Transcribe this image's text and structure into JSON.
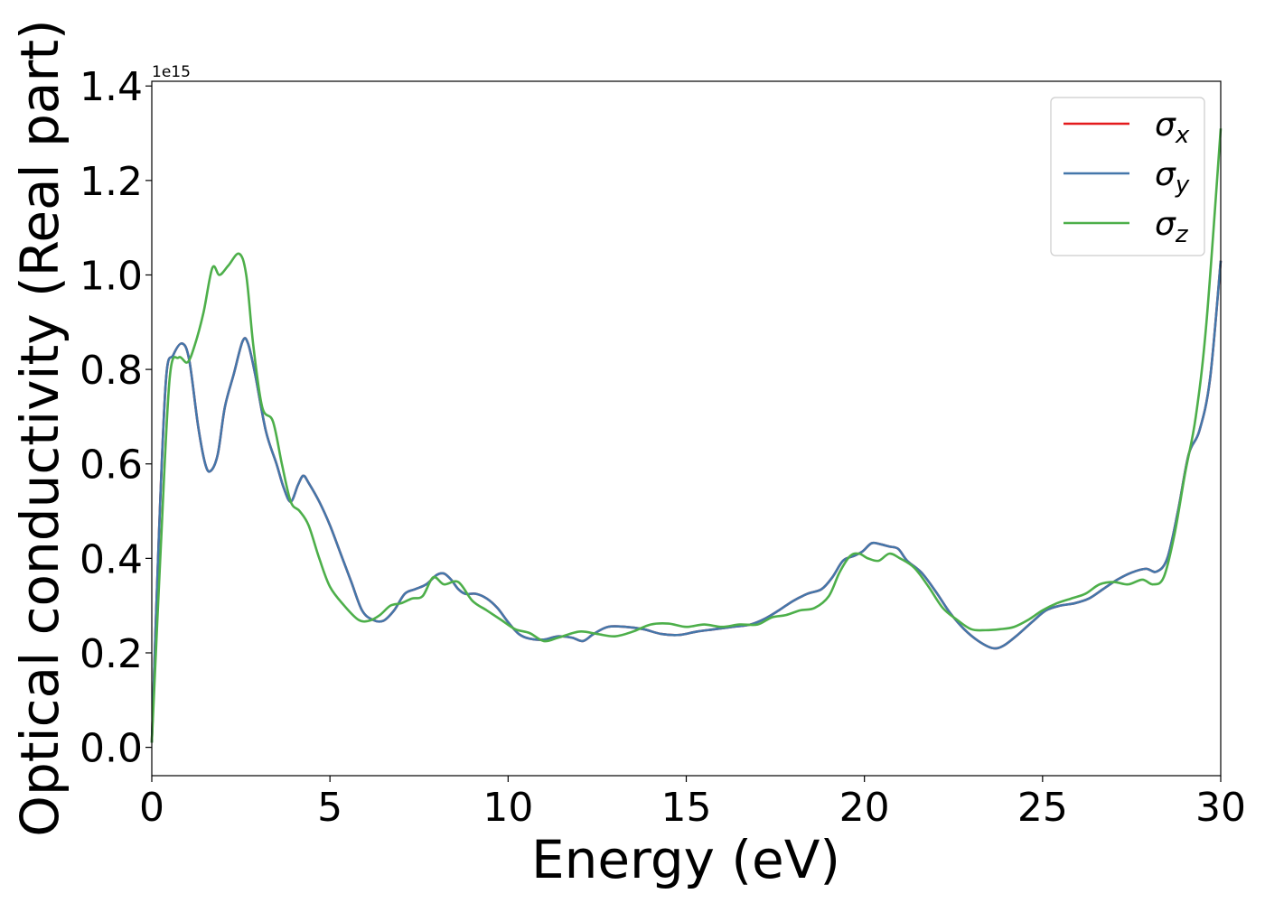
{
  "chart_data": {
    "type": "line",
    "title": "",
    "xlabel": "Energy (eV)",
    "ylabel": "Optical conductivity (Real part)",
    "y_multiplier_label": "1e15",
    "xlim": [
      0,
      30
    ],
    "ylim": [
      -0.06,
      1.41
    ],
    "xticks": [
      0,
      5,
      10,
      15,
      20,
      25,
      30
    ],
    "xtick_labels": [
      "0",
      "5",
      "10",
      "15",
      "20",
      "25",
      "30"
    ],
    "yticks": [
      0.0,
      0.2,
      0.4,
      0.6,
      0.8,
      1.0,
      1.2,
      1.4
    ],
    "ytick_labels": [
      "0.0",
      "0.2",
      "0.4",
      "0.6",
      "0.8",
      "1.0",
      "1.2",
      "1.4"
    ],
    "grid": false,
    "legend_position": "top-right",
    "series": [
      {
        "name": "σx",
        "name_base": "σ",
        "name_sub": "x",
        "color": "#e41a1c",
        "points": [
          [
            0,
            0.01
          ],
          [
            0.2,
            0.45
          ],
          [
            0.4,
            0.78
          ],
          [
            0.6,
            0.83
          ],
          [
            0.85,
            0.855
          ],
          [
            1.05,
            0.82
          ],
          [
            1.3,
            0.68
          ],
          [
            1.5,
            0.6
          ],
          [
            1.65,
            0.585
          ],
          [
            1.85,
            0.62
          ],
          [
            2.05,
            0.72
          ],
          [
            2.3,
            0.79
          ],
          [
            2.55,
            0.86
          ],
          [
            2.7,
            0.855
          ],
          [
            2.9,
            0.79
          ],
          [
            3.2,
            0.67
          ],
          [
            3.5,
            0.6
          ],
          [
            3.7,
            0.55
          ],
          [
            3.9,
            0.52
          ],
          [
            4.1,
            0.555
          ],
          [
            4.25,
            0.575
          ],
          [
            4.4,
            0.56
          ],
          [
            4.7,
            0.52
          ],
          [
            5.0,
            0.47
          ],
          [
            5.3,
            0.41
          ],
          [
            5.6,
            0.35
          ],
          [
            5.9,
            0.29
          ],
          [
            6.2,
            0.27
          ],
          [
            6.5,
            0.268
          ],
          [
            6.8,
            0.29
          ],
          [
            7.1,
            0.325
          ],
          [
            7.4,
            0.335
          ],
          [
            7.7,
            0.345
          ],
          [
            8.0,
            0.365
          ],
          [
            8.2,
            0.368
          ],
          [
            8.4,
            0.355
          ],
          [
            8.6,
            0.335
          ],
          [
            8.8,
            0.325
          ],
          [
            9.1,
            0.325
          ],
          [
            9.4,
            0.315
          ],
          [
            9.7,
            0.295
          ],
          [
            10.0,
            0.265
          ],
          [
            10.3,
            0.24
          ],
          [
            10.6,
            0.23
          ],
          [
            11.0,
            0.228
          ],
          [
            11.4,
            0.235
          ],
          [
            11.8,
            0.232
          ],
          [
            12.1,
            0.225
          ],
          [
            12.4,
            0.24
          ],
          [
            12.8,
            0.255
          ],
          [
            13.3,
            0.255
          ],
          [
            13.8,
            0.25
          ],
          [
            14.3,
            0.24
          ],
          [
            14.8,
            0.238
          ],
          [
            15.3,
            0.245
          ],
          [
            15.8,
            0.25
          ],
          [
            16.3,
            0.255
          ],
          [
            16.8,
            0.26
          ],
          [
            17.2,
            0.272
          ],
          [
            17.6,
            0.29
          ],
          [
            18.0,
            0.31
          ],
          [
            18.4,
            0.325
          ],
          [
            18.8,
            0.335
          ],
          [
            19.1,
            0.36
          ],
          [
            19.4,
            0.395
          ],
          [
            19.7,
            0.405
          ],
          [
            19.95,
            0.415
          ],
          [
            20.2,
            0.432
          ],
          [
            20.45,
            0.43
          ],
          [
            20.7,
            0.425
          ],
          [
            20.95,
            0.42
          ],
          [
            21.2,
            0.395
          ],
          [
            21.6,
            0.37
          ],
          [
            22.0,
            0.33
          ],
          [
            22.4,
            0.285
          ],
          [
            22.8,
            0.25
          ],
          [
            23.2,
            0.225
          ],
          [
            23.6,
            0.21
          ],
          [
            23.9,
            0.215
          ],
          [
            24.3,
            0.238
          ],
          [
            24.7,
            0.265
          ],
          [
            25.1,
            0.29
          ],
          [
            25.5,
            0.3
          ],
          [
            25.9,
            0.305
          ],
          [
            26.3,
            0.315
          ],
          [
            26.7,
            0.335
          ],
          [
            27.1,
            0.355
          ],
          [
            27.5,
            0.37
          ],
          [
            27.9,
            0.378
          ],
          [
            28.2,
            0.372
          ],
          [
            28.5,
            0.4
          ],
          [
            28.8,
            0.5
          ],
          [
            29.1,
            0.62
          ],
          [
            29.4,
            0.67
          ],
          [
            29.7,
            0.78
          ],
          [
            30.0,
            1.03
          ]
        ]
      },
      {
        "name": "σy",
        "name_base": "σ",
        "name_sub": "y",
        "color": "#4477aa",
        "points": [
          [
            0,
            0.01
          ],
          [
            0.2,
            0.45
          ],
          [
            0.4,
            0.78
          ],
          [
            0.6,
            0.83
          ],
          [
            0.85,
            0.855
          ],
          [
            1.05,
            0.82
          ],
          [
            1.3,
            0.68
          ],
          [
            1.5,
            0.6
          ],
          [
            1.65,
            0.585
          ],
          [
            1.85,
            0.62
          ],
          [
            2.05,
            0.72
          ],
          [
            2.3,
            0.79
          ],
          [
            2.55,
            0.86
          ],
          [
            2.7,
            0.855
          ],
          [
            2.9,
            0.79
          ],
          [
            3.2,
            0.67
          ],
          [
            3.5,
            0.6
          ],
          [
            3.7,
            0.55
          ],
          [
            3.9,
            0.52
          ],
          [
            4.1,
            0.555
          ],
          [
            4.25,
            0.575
          ],
          [
            4.4,
            0.56
          ],
          [
            4.7,
            0.52
          ],
          [
            5.0,
            0.47
          ],
          [
            5.3,
            0.41
          ],
          [
            5.6,
            0.35
          ],
          [
            5.9,
            0.29
          ],
          [
            6.2,
            0.27
          ],
          [
            6.5,
            0.268
          ],
          [
            6.8,
            0.29
          ],
          [
            7.1,
            0.325
          ],
          [
            7.4,
            0.335
          ],
          [
            7.7,
            0.345
          ],
          [
            8.0,
            0.365
          ],
          [
            8.2,
            0.368
          ],
          [
            8.4,
            0.355
          ],
          [
            8.6,
            0.335
          ],
          [
            8.8,
            0.325
          ],
          [
            9.1,
            0.325
          ],
          [
            9.4,
            0.315
          ],
          [
            9.7,
            0.295
          ],
          [
            10.0,
            0.265
          ],
          [
            10.3,
            0.24
          ],
          [
            10.6,
            0.23
          ],
          [
            11.0,
            0.228
          ],
          [
            11.4,
            0.235
          ],
          [
            11.8,
            0.232
          ],
          [
            12.1,
            0.225
          ],
          [
            12.4,
            0.24
          ],
          [
            12.8,
            0.255
          ],
          [
            13.3,
            0.255
          ],
          [
            13.8,
            0.25
          ],
          [
            14.3,
            0.24
          ],
          [
            14.8,
            0.238
          ],
          [
            15.3,
            0.245
          ],
          [
            15.8,
            0.25
          ],
          [
            16.3,
            0.255
          ],
          [
            16.8,
            0.26
          ],
          [
            17.2,
            0.272
          ],
          [
            17.6,
            0.29
          ],
          [
            18.0,
            0.31
          ],
          [
            18.4,
            0.325
          ],
          [
            18.8,
            0.335
          ],
          [
            19.1,
            0.36
          ],
          [
            19.4,
            0.395
          ],
          [
            19.7,
            0.405
          ],
          [
            19.95,
            0.415
          ],
          [
            20.2,
            0.432
          ],
          [
            20.45,
            0.43
          ],
          [
            20.7,
            0.425
          ],
          [
            20.95,
            0.42
          ],
          [
            21.2,
            0.395
          ],
          [
            21.6,
            0.37
          ],
          [
            22.0,
            0.33
          ],
          [
            22.4,
            0.285
          ],
          [
            22.8,
            0.25
          ],
          [
            23.2,
            0.225
          ],
          [
            23.6,
            0.21
          ],
          [
            23.9,
            0.215
          ],
          [
            24.3,
            0.238
          ],
          [
            24.7,
            0.265
          ],
          [
            25.1,
            0.29
          ],
          [
            25.5,
            0.3
          ],
          [
            25.9,
            0.305
          ],
          [
            26.3,
            0.315
          ],
          [
            26.7,
            0.335
          ],
          [
            27.1,
            0.355
          ],
          [
            27.5,
            0.37
          ],
          [
            27.9,
            0.378
          ],
          [
            28.2,
            0.372
          ],
          [
            28.5,
            0.4
          ],
          [
            28.8,
            0.5
          ],
          [
            29.1,
            0.62
          ],
          [
            29.4,
            0.67
          ],
          [
            29.7,
            0.78
          ],
          [
            30.0,
            1.03
          ]
        ]
      },
      {
        "name": "σz",
        "name_base": "σ",
        "name_sub": "z",
        "color": "#4daf4a",
        "points": [
          [
            0,
            0.01
          ],
          [
            0.25,
            0.42
          ],
          [
            0.5,
            0.78
          ],
          [
            0.75,
            0.825
          ],
          [
            1.0,
            0.815
          ],
          [
            1.2,
            0.85
          ],
          [
            1.45,
            0.92
          ],
          [
            1.7,
            1.015
          ],
          [
            1.9,
            1.0
          ],
          [
            2.15,
            1.02
          ],
          [
            2.45,
            1.045
          ],
          [
            2.65,
            1.0
          ],
          [
            2.85,
            0.85
          ],
          [
            3.1,
            0.72
          ],
          [
            3.4,
            0.69
          ],
          [
            3.65,
            0.6
          ],
          [
            3.9,
            0.52
          ],
          [
            4.15,
            0.5
          ],
          [
            4.4,
            0.47
          ],
          [
            4.7,
            0.4
          ],
          [
            5.0,
            0.34
          ],
          [
            5.4,
            0.3
          ],
          [
            5.8,
            0.27
          ],
          [
            6.1,
            0.268
          ],
          [
            6.4,
            0.28
          ],
          [
            6.7,
            0.3
          ],
          [
            7.0,
            0.305
          ],
          [
            7.3,
            0.315
          ],
          [
            7.6,
            0.32
          ],
          [
            7.9,
            0.36
          ],
          [
            8.2,
            0.345
          ],
          [
            8.6,
            0.35
          ],
          [
            9.0,
            0.31
          ],
          [
            9.4,
            0.29
          ],
          [
            9.8,
            0.27
          ],
          [
            10.2,
            0.25
          ],
          [
            10.6,
            0.242
          ],
          [
            11.0,
            0.225
          ],
          [
            11.4,
            0.232
          ],
          [
            12.0,
            0.245
          ],
          [
            12.5,
            0.24
          ],
          [
            13.0,
            0.235
          ],
          [
            13.5,
            0.245
          ],
          [
            14.0,
            0.26
          ],
          [
            14.5,
            0.262
          ],
          [
            15.0,
            0.255
          ],
          [
            15.5,
            0.26
          ],
          [
            16.0,
            0.255
          ],
          [
            16.5,
            0.26
          ],
          [
            17.0,
            0.26
          ],
          [
            17.4,
            0.275
          ],
          [
            17.8,
            0.28
          ],
          [
            18.2,
            0.29
          ],
          [
            18.6,
            0.295
          ],
          [
            19.0,
            0.32
          ],
          [
            19.3,
            0.37
          ],
          [
            19.6,
            0.405
          ],
          [
            19.85,
            0.41
          ],
          [
            20.1,
            0.4
          ],
          [
            20.4,
            0.395
          ],
          [
            20.7,
            0.41
          ],
          [
            21.0,
            0.4
          ],
          [
            21.4,
            0.38
          ],
          [
            21.8,
            0.34
          ],
          [
            22.2,
            0.295
          ],
          [
            22.6,
            0.27
          ],
          [
            23.0,
            0.25
          ],
          [
            23.4,
            0.248
          ],
          [
            23.8,
            0.25
          ],
          [
            24.2,
            0.255
          ],
          [
            24.6,
            0.27
          ],
          [
            25.0,
            0.29
          ],
          [
            25.4,
            0.305
          ],
          [
            25.8,
            0.315
          ],
          [
            26.2,
            0.325
          ],
          [
            26.6,
            0.345
          ],
          [
            27.0,
            0.35
          ],
          [
            27.4,
            0.345
          ],
          [
            27.8,
            0.355
          ],
          [
            28.1,
            0.345
          ],
          [
            28.4,
            0.36
          ],
          [
            28.7,
            0.45
          ],
          [
            29.0,
            0.58
          ],
          [
            29.3,
            0.7
          ],
          [
            29.6,
            0.9
          ],
          [
            30.0,
            1.31
          ]
        ]
      }
    ]
  }
}
